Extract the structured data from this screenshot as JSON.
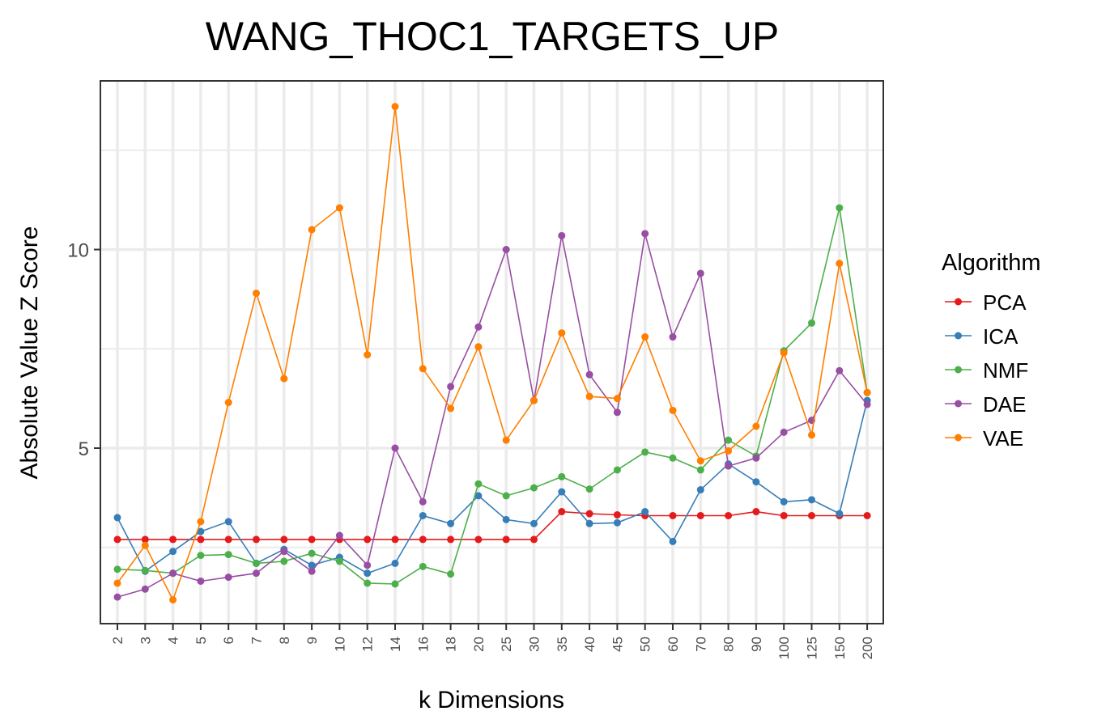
{
  "chart_data": {
    "type": "line",
    "title": "WANG_THOC1_TARGETS_UP",
    "xlabel": "k Dimensions",
    "ylabel": "Absolute Value Z Score",
    "categories": [
      "2",
      "3",
      "4",
      "5",
      "6",
      "7",
      "8",
      "9",
      "10",
      "12",
      "14",
      "16",
      "18",
      "20",
      "25",
      "30",
      "35",
      "40",
      "45",
      "50",
      "60",
      "70",
      "80",
      "90",
      "100",
      "125",
      "150",
      "200"
    ],
    "ylim": [
      0.8,
      14.2
    ],
    "yticks": [
      5,
      10
    ],
    "ytick_labels": [
      "5",
      "10"
    ],
    "grid": true,
    "legend_title": "Algorithm",
    "legend_position": "right",
    "series": [
      {
        "name": "PCA",
        "color": "#e41a1c",
        "values": [
          2.7,
          2.7,
          2.7,
          2.7,
          2.7,
          2.7,
          2.7,
          2.7,
          2.7,
          2.7,
          2.7,
          2.7,
          2.7,
          2.7,
          2.7,
          2.7,
          3.4,
          3.35,
          3.32,
          3.3,
          3.3,
          3.3,
          3.3,
          3.4,
          3.3,
          3.3,
          3.3,
          3.3
        ]
      },
      {
        "name": "ICA",
        "color": "#377eb8",
        "values": [
          3.25,
          1.9,
          2.4,
          2.9,
          3.15,
          2.1,
          2.45,
          2.05,
          2.25,
          1.85,
          2.1,
          3.3,
          3.1,
          3.8,
          3.2,
          3.1,
          3.9,
          3.1,
          3.12,
          3.4,
          2.65,
          3.95,
          4.6,
          4.15,
          3.65,
          3.7,
          3.35,
          6.2
        ]
      },
      {
        "name": "NMF",
        "color": "#4daf4a",
        "values": [
          1.95,
          1.92,
          1.85,
          2.3,
          2.32,
          2.1,
          2.15,
          2.35,
          2.15,
          1.6,
          1.58,
          2.02,
          1.83,
          4.1,
          3.8,
          4.0,
          4.28,
          3.97,
          4.45,
          4.9,
          4.75,
          4.45,
          5.2,
          4.8,
          7.45,
          8.15,
          11.05,
          6.4
        ]
      },
      {
        "name": "DAE",
        "color": "#984ea3",
        "values": [
          1.25,
          1.45,
          1.85,
          1.65,
          1.75,
          1.85,
          2.4,
          1.9,
          2.8,
          2.05,
          5.0,
          3.65,
          6.55,
          8.05,
          10.0,
          6.2,
          10.35,
          6.85,
          5.9,
          10.4,
          7.8,
          9.4,
          4.55,
          4.75,
          5.4,
          5.7,
          6.95,
          6.1
        ]
      },
      {
        "name": "VAE",
        "color": "#ff7f00",
        "values": [
          1.6,
          2.55,
          1.18,
          3.15,
          6.15,
          8.9,
          6.75,
          10.5,
          11.05,
          7.35,
          13.6,
          7.0,
          6.0,
          7.55,
          5.2,
          6.2,
          7.9,
          6.3,
          6.25,
          7.8,
          5.95,
          4.68,
          4.93,
          5.55,
          7.4,
          5.33,
          9.65,
          6.4
        ]
      }
    ]
  }
}
